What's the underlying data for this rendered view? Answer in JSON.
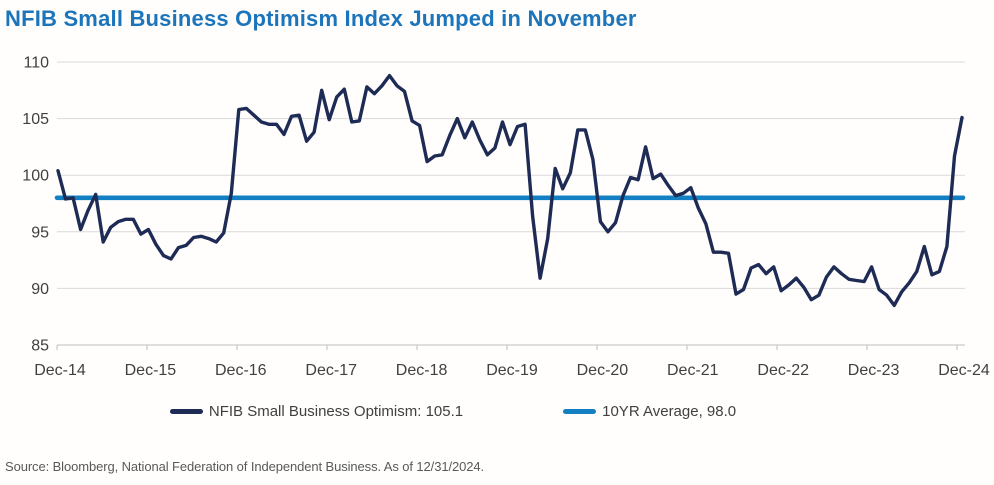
{
  "title": "NFIB Small Business Optimism Index Jumped in November",
  "source_note": "Source: Bloomberg, National Federation of Independent Business. As of 12/31/2024.",
  "legend": [
    {
      "label": "NFIB Small Business Optimism: 105.1",
      "color": "#1e2b55"
    },
    {
      "label": "10YR Average, 98.0",
      "color": "#1480c4"
    }
  ],
  "colors": {
    "title": "#1c75bb",
    "series_line": "#1e2b55",
    "average_line": "#1480c4",
    "gridline": "#d9d9d9",
    "axis_line": "#bfbfbf",
    "axis_label": "#404040",
    "legend_text": "#404040",
    "source_text": "#595959",
    "background": "#ffffff"
  },
  "chart_data": {
    "type": "line",
    "title": "NFIB Small Business Optimism Index Jumped in November",
    "x_start": "Dec-2014",
    "x_end": "Dec-2024",
    "x_frequency": "monthly",
    "x_tick_labels": [
      "Dec-14",
      "Dec-15",
      "Dec-16",
      "Dec-17",
      "Dec-18",
      "Dec-19",
      "Dec-20",
      "Dec-21",
      "Dec-22",
      "Dec-23",
      "Dec-24"
    ],
    "ylim": [
      85,
      110
    ],
    "y_ticks": [
      85,
      90,
      95,
      100,
      105,
      110
    ],
    "grid": "horizontal",
    "legend_position": "bottom",
    "series": [
      {
        "name": "NFIB Small Business Optimism",
        "latest_label": "NFIB Small Business Optimism: 105.1",
        "latest_value": 105.1,
        "values": [
          100.4,
          97.9,
          98.0,
          95.2,
          96.9,
          98.3,
          94.1,
          95.4,
          95.9,
          96.1,
          96.1,
          94.8,
          95.2,
          93.9,
          92.9,
          92.6,
          93.6,
          93.8,
          94.5,
          94.6,
          94.4,
          94.1,
          94.9,
          98.4,
          105.8,
          105.9,
          105.3,
          104.7,
          104.5,
          104.5,
          103.6,
          105.2,
          105.3,
          103.0,
          103.8,
          107.5,
          104.9,
          106.9,
          107.6,
          104.7,
          104.8,
          107.8,
          107.2,
          107.9,
          108.8,
          107.9,
          107.4,
          104.8,
          104.4,
          101.2,
          101.7,
          101.8,
          103.5,
          105.0,
          103.3,
          104.7,
          103.1,
          101.8,
          102.4,
          104.7,
          102.7,
          104.3,
          104.5,
          96.4,
          90.9,
          94.4,
          100.6,
          98.8,
          100.2,
          104.0,
          104.0,
          101.4,
          95.9,
          95.0,
          95.8,
          98.2,
          99.8,
          99.6,
          102.5,
          99.7,
          100.1,
          99.1,
          98.2,
          98.4,
          98.9,
          97.1,
          95.7,
          93.2,
          93.2,
          93.1,
          89.5,
          89.9,
          91.8,
          92.1,
          91.3,
          91.9,
          89.8,
          90.3,
          90.9,
          90.1,
          89.0,
          89.4,
          91.0,
          91.9,
          91.3,
          90.8,
          90.7,
          90.6,
          91.9,
          89.9,
          89.4,
          88.5,
          89.7,
          90.5,
          91.5,
          93.7,
          91.2,
          91.5,
          93.7,
          101.7,
          105.1
        ]
      },
      {
        "name": "10YR Average",
        "latest_label": "10YR Average, 98.0",
        "constant_value": 98.0
      }
    ]
  }
}
